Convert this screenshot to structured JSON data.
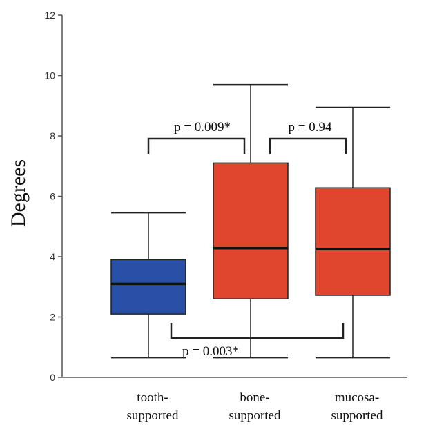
{
  "chart_data": {
    "type": "box",
    "title": "",
    "ylabel": "Degrees",
    "xlabel": "",
    "ylim": [
      0,
      12
    ],
    "yticks": [
      "0",
      "2",
      "4",
      "6",
      "8",
      "10",
      "12"
    ],
    "grid": false,
    "categories": [
      [
        "tooth-",
        "supported"
      ],
      [
        "bone-",
        "supported"
      ],
      [
        "mucosa-",
        "supported"
      ]
    ],
    "boxes": [
      {
        "min": 0.65,
        "q1": 2.1,
        "median": 3.1,
        "q3": 3.9,
        "max": 5.45,
        "color": "#2a4fa6"
      },
      {
        "min": 0.65,
        "q1": 2.6,
        "median": 4.28,
        "q3": 7.1,
        "max": 9.7,
        "color": "#e0452e"
      },
      {
        "min": 0.65,
        "q1": 2.72,
        "median": 4.25,
        "q3": 6.28,
        "max": 8.95,
        "color": "#e0452e"
      }
    ],
    "comparisons": [
      {
        "from": 0,
        "to": 1,
        "label": "p = 0.009*",
        "position": "above"
      },
      {
        "from": 1,
        "to": 2,
        "label": "p = 0.94",
        "position": "above"
      },
      {
        "from": 0,
        "to": 2,
        "label": "p = 0.003*",
        "position": "below"
      }
    ]
  }
}
